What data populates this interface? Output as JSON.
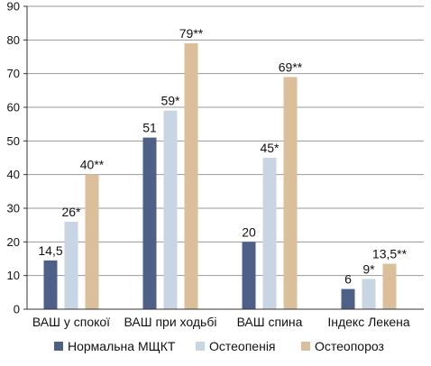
{
  "chart_data": {
    "type": "bar",
    "categories": [
      "ВАШ у спокої",
      "ВАШ при ходьбі",
      "ВАШ спина",
      "Індекс Лекена"
    ],
    "series": [
      {
        "name": "Нормальна МЩКТ",
        "color": "#4f6088",
        "values": [
          14.5,
          51,
          20,
          6
        ],
        "labels": [
          "14,5",
          "51",
          "20",
          "6"
        ]
      },
      {
        "name": "Остеопенія",
        "color": "#c8d6e3",
        "values": [
          26,
          59,
          45,
          9
        ],
        "labels": [
          "26*",
          "59*",
          "45*",
          "9*"
        ]
      },
      {
        "name": "Остеопороз",
        "color": "#dbbf9b",
        "values": [
          40,
          79,
          69,
          13.5
        ],
        "labels": [
          "40**",
          "79**",
          "69**",
          "13,5**"
        ]
      }
    ],
    "yticks": [
      0,
      10,
      20,
      30,
      40,
      50,
      60,
      70,
      80,
      90
    ],
    "ylim": [
      0,
      90
    ],
    "grid": true,
    "legend_position": "bottom"
  }
}
